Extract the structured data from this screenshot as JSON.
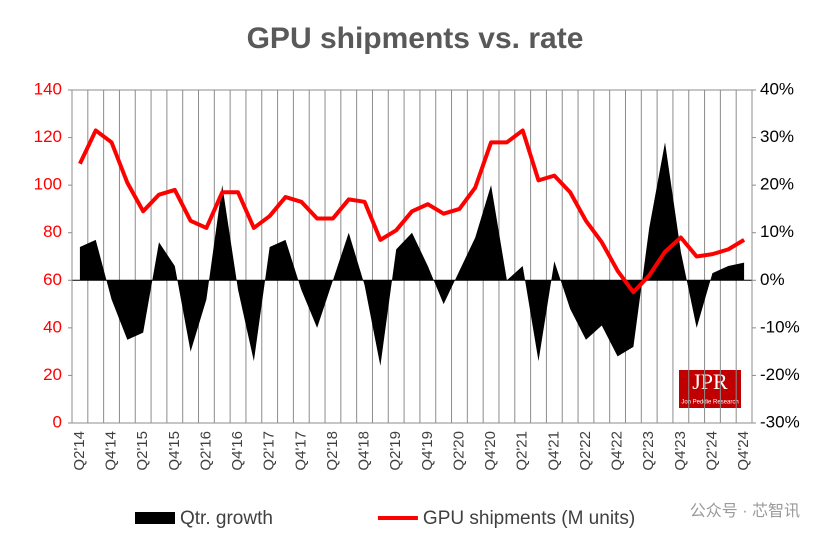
{
  "chart_data": {
    "type": "line",
    "title": "GPU shipments vs. rate",
    "categories": [
      "Q2'14",
      null,
      "Q4'14",
      null,
      "Q2'15",
      null,
      "Q4'15",
      null,
      "Q2'16",
      null,
      "Q4'16",
      null,
      "Q2'17",
      null,
      "Q4'17",
      null,
      "Q2'18",
      null,
      "Q4'18",
      null,
      "Q2'19",
      null,
      "Q4'19",
      null,
      "Q2'20",
      null,
      "Q4'20",
      null,
      "Q2'21",
      null,
      "Q4'21",
      null,
      "Q2'22",
      null,
      "Q4'22",
      null,
      "Q2'23",
      null,
      "Q4'23",
      null,
      "Q2'24",
      null,
      "Q4'24"
    ],
    "series": [
      {
        "name": "Qtr. growth",
        "type": "area",
        "axis": "y2",
        "color": "#000000",
        "values": [
          7,
          8.5,
          -4,
          -12.5,
          -11,
          8,
          3,
          -15,
          -4,
          20,
          -2,
          -17,
          7,
          8.5,
          -2,
          -10,
          0,
          10,
          -1,
          -18,
          6.5,
          10,
          3,
          -5,
          2,
          9,
          20,
          0,
          3,
          -17,
          4,
          -6,
          -12.5,
          -9.5,
          -16,
          -14,
          11,
          29,
          6,
          -10,
          1.5,
          3,
          3.7
        ]
      },
      {
        "name": "GPU shipments (M units)",
        "type": "line",
        "axis": "y",
        "color": "#ff0000",
        "values": [
          109,
          123,
          118,
          101,
          89,
          96,
          98,
          85,
          82,
          97,
          97,
          82,
          87,
          95,
          93,
          86,
          86,
          94,
          93,
          77,
          81,
          89,
          92,
          88,
          90,
          99,
          118,
          118,
          123,
          102,
          104,
          97,
          85,
          76,
          64,
          55,
          62,
          72,
          78,
          70,
          71,
          73,
          77
        ]
      }
    ],
    "ylim": [
      0,
      140
    ],
    "yticks": [
      0,
      20,
      40,
      60,
      80,
      100,
      120,
      140
    ],
    "ytick_color": "#ff0000",
    "y2lim": [
      -30,
      40
    ],
    "y2ticks": [
      {
        "value": -30,
        "label": "-30%"
      },
      {
        "value": -20,
        "label": "-20%"
      },
      {
        "value": -10,
        "label": "-10%"
      },
      {
        "value": 0,
        "label": "0%"
      },
      {
        "value": 10,
        "label": "10%"
      },
      {
        "value": 20,
        "label": "20%"
      },
      {
        "value": 30,
        "label": "30%"
      },
      {
        "value": 40,
        "label": "40%"
      }
    ],
    "grid": "vertical",
    "legend": "bottom",
    "logo": {
      "title": "JPR",
      "subtitle": "Jon Peddie Research"
    },
    "watermark": "公众号 · 芯智讯"
  }
}
